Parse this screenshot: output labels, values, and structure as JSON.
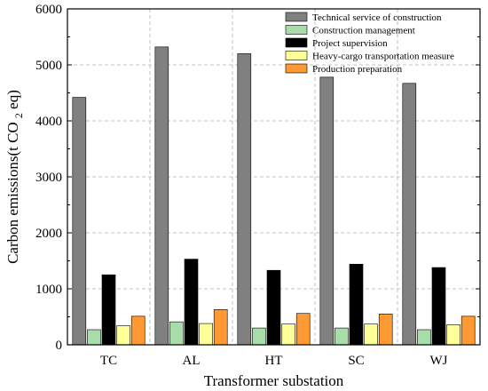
{
  "chart_data": {
    "type": "bar",
    "title": "",
    "xlabel": "Transformer substation",
    "ylabel_prefix": "Carbon emissions(t CO",
    "ylabel_sub": "2",
    "ylabel_suffix": " eq)",
    "categories": [
      "TC",
      "AL",
      "HT",
      "SC",
      "WJ"
    ],
    "ylim": [
      0,
      6000
    ],
    "yticks": [
      0,
      1000,
      2000,
      3000,
      4000,
      5000,
      6000
    ],
    "ytick_labels": [
      "0",
      "1000",
      "2000",
      "3000",
      "4000",
      "5000",
      "6000"
    ],
    "grid": true,
    "legend_position": "top-right",
    "series": [
      {
        "name": "Technical service of construction",
        "color": "#808080",
        "values": [
          4420,
          5320,
          5200,
          4780,
          4670
        ]
      },
      {
        "name": "Construction management",
        "color": "#a8dca8",
        "values": [
          270,
          410,
          300,
          300,
          270
        ]
      },
      {
        "name": "Project supervision",
        "color": "#000000",
        "values": [
          1250,
          1530,
          1330,
          1440,
          1380
        ]
      },
      {
        "name": "Heavy-cargo transportation measure",
        "color": "#ffff99",
        "values": [
          340,
          380,
          370,
          370,
          360
        ]
      },
      {
        "name": "Production preparation",
        "color": "#ff9933",
        "values": [
          510,
          630,
          560,
          550,
          510
        ]
      }
    ]
  }
}
